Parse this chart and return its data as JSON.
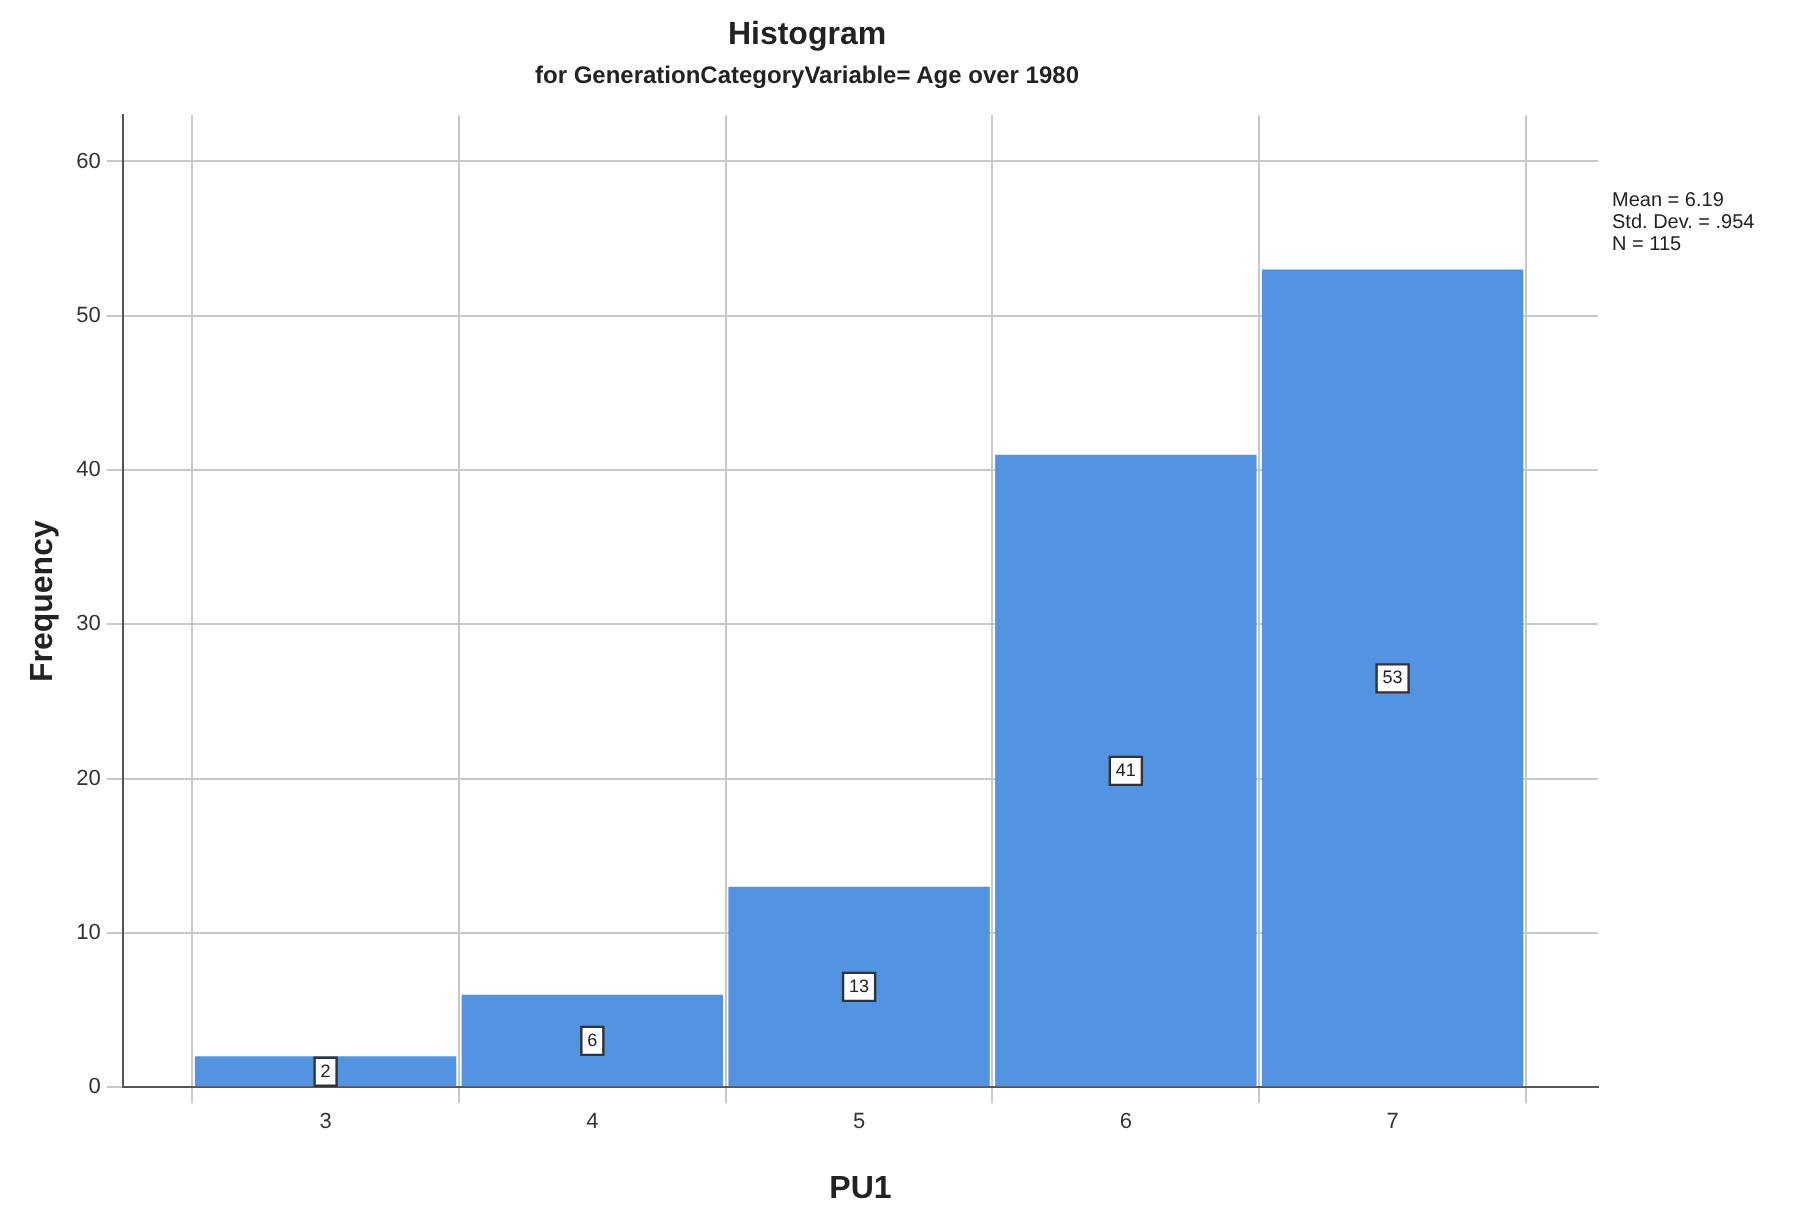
{
  "chart_data": {
    "type": "histogram",
    "title": "Histogram",
    "subtitle": "for GenerationCategoryVariable= Age over 1980",
    "xlabel": "PU1",
    "ylabel": "Frequency",
    "bins": [
      2.5,
      3.5,
      4.5,
      5.5,
      6.5,
      7.5
    ],
    "values": [
      2,
      6,
      13,
      41,
      53
    ],
    "color": "#5294e2",
    "xlim": [
      2.24,
      7.77
    ],
    "xticks": [
      3,
      4,
      5,
      6,
      7
    ],
    "ylim": [
      0,
      63
    ],
    "yticks": [
      0,
      10,
      20,
      30,
      40,
      50,
      60
    ],
    "grid": true,
    "data_labels": true,
    "annotations": [
      "Mean = 6.19",
      "Std. Dev. = .954",
      "N = 115"
    ]
  }
}
